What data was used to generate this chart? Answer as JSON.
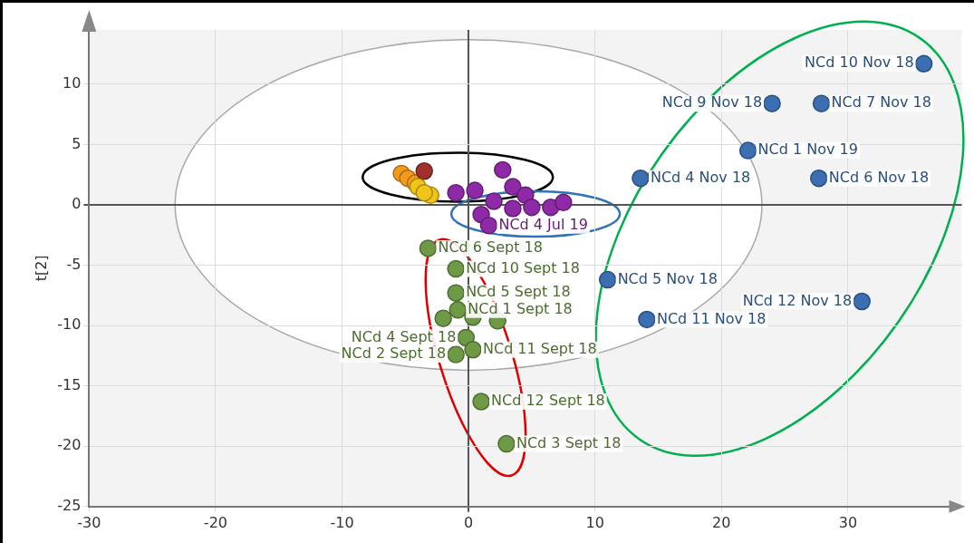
{
  "chart_data": {
    "type": "scatter",
    "ylabel": "t[2]",
    "xlim": [
      -30,
      39
    ],
    "ylim": [
      -25,
      14.5
    ],
    "xticks": [
      -30,
      -20,
      -10,
      0,
      10,
      20,
      30
    ],
    "yticks": [
      -25,
      -20,
      -15,
      -10,
      -5,
      0,
      5,
      10
    ],
    "grid": true,
    "legend": false,
    "marker": "circle",
    "series": [
      {
        "color": "#6e9a45",
        "x": [
          -3.2,
          -1.0,
          -1.0,
          -0.85,
          -2.0,
          0.35,
          2.3,
          -0.2,
          0.35,
          -1.0,
          1.0,
          3.0
        ],
        "values": [
          -3.6,
          -5.3,
          -7.3,
          -8.7,
          -9.4,
          -9.3,
          -9.6,
          -11.0,
          -12.0,
          -12.4,
          -16.3,
          -19.8
        ]
      },
      {
        "color": "#3b6fb1",
        "x": [
          36.0,
          24.0,
          27.9,
          22.1,
          13.6,
          27.7,
          11.0,
          14.1,
          31.1
        ],
        "values": [
          11.7,
          8.4,
          8.4,
          4.5,
          2.2,
          2.2,
          -6.2,
          -9.5,
          -8.0
        ]
      },
      {
        "color": "#8e2aa5",
        "x": [
          2.7,
          3.5,
          4.5,
          1.0,
          1.6,
          3.5,
          5.0,
          6.5,
          7.5,
          0.5,
          -1.0,
          2.0
        ],
        "values": [
          2.9,
          1.5,
          0.8,
          -0.8,
          -1.7,
          -0.3,
          -0.2,
          -0.2,
          0.2,
          1.2,
          1.0,
          0.3
        ]
      },
      {
        "color": "#f0c419",
        "x": [
          -3.0,
          -4.0,
          -3.5
        ],
        "values": [
          0.8,
          1.5,
          1.0
        ]
      },
      {
        "color": "#a0302a",
        "x": [
          -3.5
        ],
        "values": [
          2.8
        ]
      },
      {
        "color": "#f39a1e",
        "x": [
          -5.3,
          -4.8,
          -4.2
        ],
        "values": [
          2.6,
          2.2,
          1.8
        ]
      }
    ],
    "annotations": [
      {
        "text": "NCd 10 Nov 18",
        "x": 36.0,
        "y": 11.7
      },
      {
        "text": "NCd 9 Nov 18",
        "x": 24.0,
        "y": 8.4
      },
      {
        "text": "NCd 7 Nov 18",
        "x": 27.9,
        "y": 8.4
      },
      {
        "text": "NCd 1 Nov 19",
        "x": 22.1,
        "y": 4.5
      },
      {
        "text": "NCd 4 Nov 18",
        "x": 13.6,
        "y": 2.2
      },
      {
        "text": "NCd 6 Nov 18",
        "x": 27.7,
        "y": 2.2
      },
      {
        "text": "NCd 5 Nov 18",
        "x": 11.0,
        "y": -6.2
      },
      {
        "text": "NCd 11 Nov 18",
        "x": 14.1,
        "y": -9.5
      },
      {
        "text": "NCd 12 Nov 18",
        "x": 31.1,
        "y": -8.0
      },
      {
        "text": "NCd 6 Sept 18",
        "x": -3.2,
        "y": -3.6
      },
      {
        "text": "NCd 10 Sept 18",
        "x": -1.0,
        "y": -5.3
      },
      {
        "text": "NCd 5 Sept 18",
        "x": -1.0,
        "y": -7.3
      },
      {
        "text": "NCd 1 Sept 18",
        "x": -0.85,
        "y": -8.7
      },
      {
        "text": "NCd 4 Sept 18",
        "x": -0.2,
        "y": -11.0
      },
      {
        "text": "NCd 11 Sept 18",
        "x": 0.35,
        "y": -12.0
      },
      {
        "text": "NCd 2 Sept 18",
        "x": -1.0,
        "y": -12.4
      },
      {
        "text": "NCd 12 Sept 18",
        "x": 1.0,
        "y": -16.3
      },
      {
        "text": "NCd 3 Sept 18",
        "x": 3.0,
        "y": -19.8
      },
      {
        "text": "NCd 4 Jul 19",
        "x": 1.6,
        "y": -1.7
      }
    ]
  }
}
